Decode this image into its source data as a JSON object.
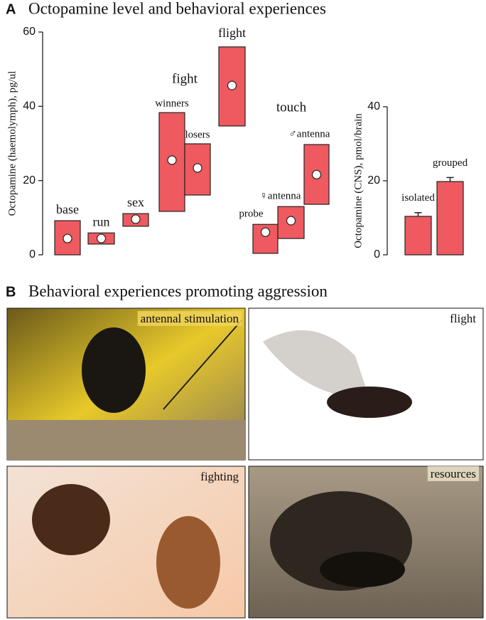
{
  "panel_a": {
    "label": "A",
    "title": "Octopamine level and behavioral experiences"
  },
  "chart_data": [
    {
      "type": "range",
      "y_label": "Octopamine (haemolymph), pg/ul",
      "categories": [
        "base",
        "run",
        "sex",
        "winners",
        "losers",
        "flight",
        "probe",
        "♀antenna",
        "♂antenna"
      ],
      "low": [
        0,
        2.9,
        7.7,
        11.7,
        16.1,
        34.7,
        0.4,
        4.4,
        13.6
      ],
      "high": [
        9.2,
        5.9,
        11.1,
        38.3,
        29.9,
        56,
        8.2,
        13,
        29.7
      ],
      "median": [
        4.4,
        4.4,
        9.6,
        25.5,
        23.4,
        45.6,
        6.1,
        9.2,
        21.6
      ],
      "annotations": [
        "fight",
        "touch"
      ],
      "color": "#ee5a5f",
      "ylim": [
        0,
        60
      ],
      "yticks": [
        0,
        20,
        40,
        60
      ]
    },
    {
      "type": "bar",
      "y_label": "Octopamine (CNS), pmol/brain",
      "categories": [
        "isolated",
        "grouped"
      ],
      "values": [
        10.4,
        19.8
      ],
      "errors": [
        1,
        1.1
      ],
      "color": "#ee5a5f",
      "ylim": [
        0,
        40
      ],
      "yticks": [
        0,
        20,
        40
      ]
    }
  ],
  "panel_b": {
    "label": "B",
    "title": "Behavioral experiences  promoting aggression",
    "photos": [
      "antennal stimulation",
      "flight",
      "fighting",
      "resources"
    ]
  }
}
